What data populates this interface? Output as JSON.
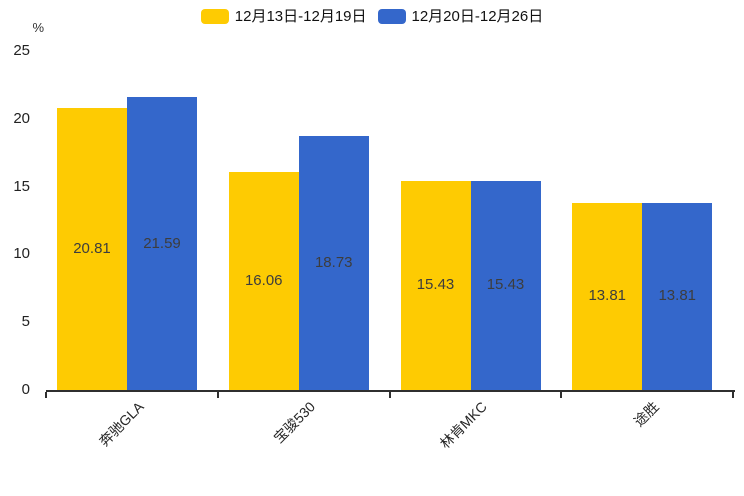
{
  "chart_data": {
    "type": "bar",
    "title": "",
    "unit": "%",
    "categories": [
      "奔驰GLA",
      "宝骏530",
      "林肯MKC",
      "途胜"
    ],
    "series": [
      {
        "name": "12月13日-12月19日",
        "color": "#fecb02",
        "values": [
          20.81,
          16.06,
          15.43,
          13.81
        ]
      },
      {
        "name": "12月20日-12月26日",
        "color": "#3467cb",
        "values": [
          21.59,
          18.73,
          15.43,
          13.81
        ]
      }
    ],
    "xlabel": "",
    "ylabel": "%",
    "ylim": [
      0,
      25
    ],
    "yticks": [
      25,
      20,
      15,
      10,
      5,
      0
    ],
    "grid": false,
    "legend_position": "top",
    "value_labels": "inside-middle",
    "value_label_format": "2-decimals"
  },
  "colors": {
    "background": "#ffffff",
    "axis": "#2f2f2f",
    "ytick_text": "#222222",
    "value_label_text": "#3d3d3d",
    "category_label_text": "#262626",
    "legend_text": "#111111"
  }
}
